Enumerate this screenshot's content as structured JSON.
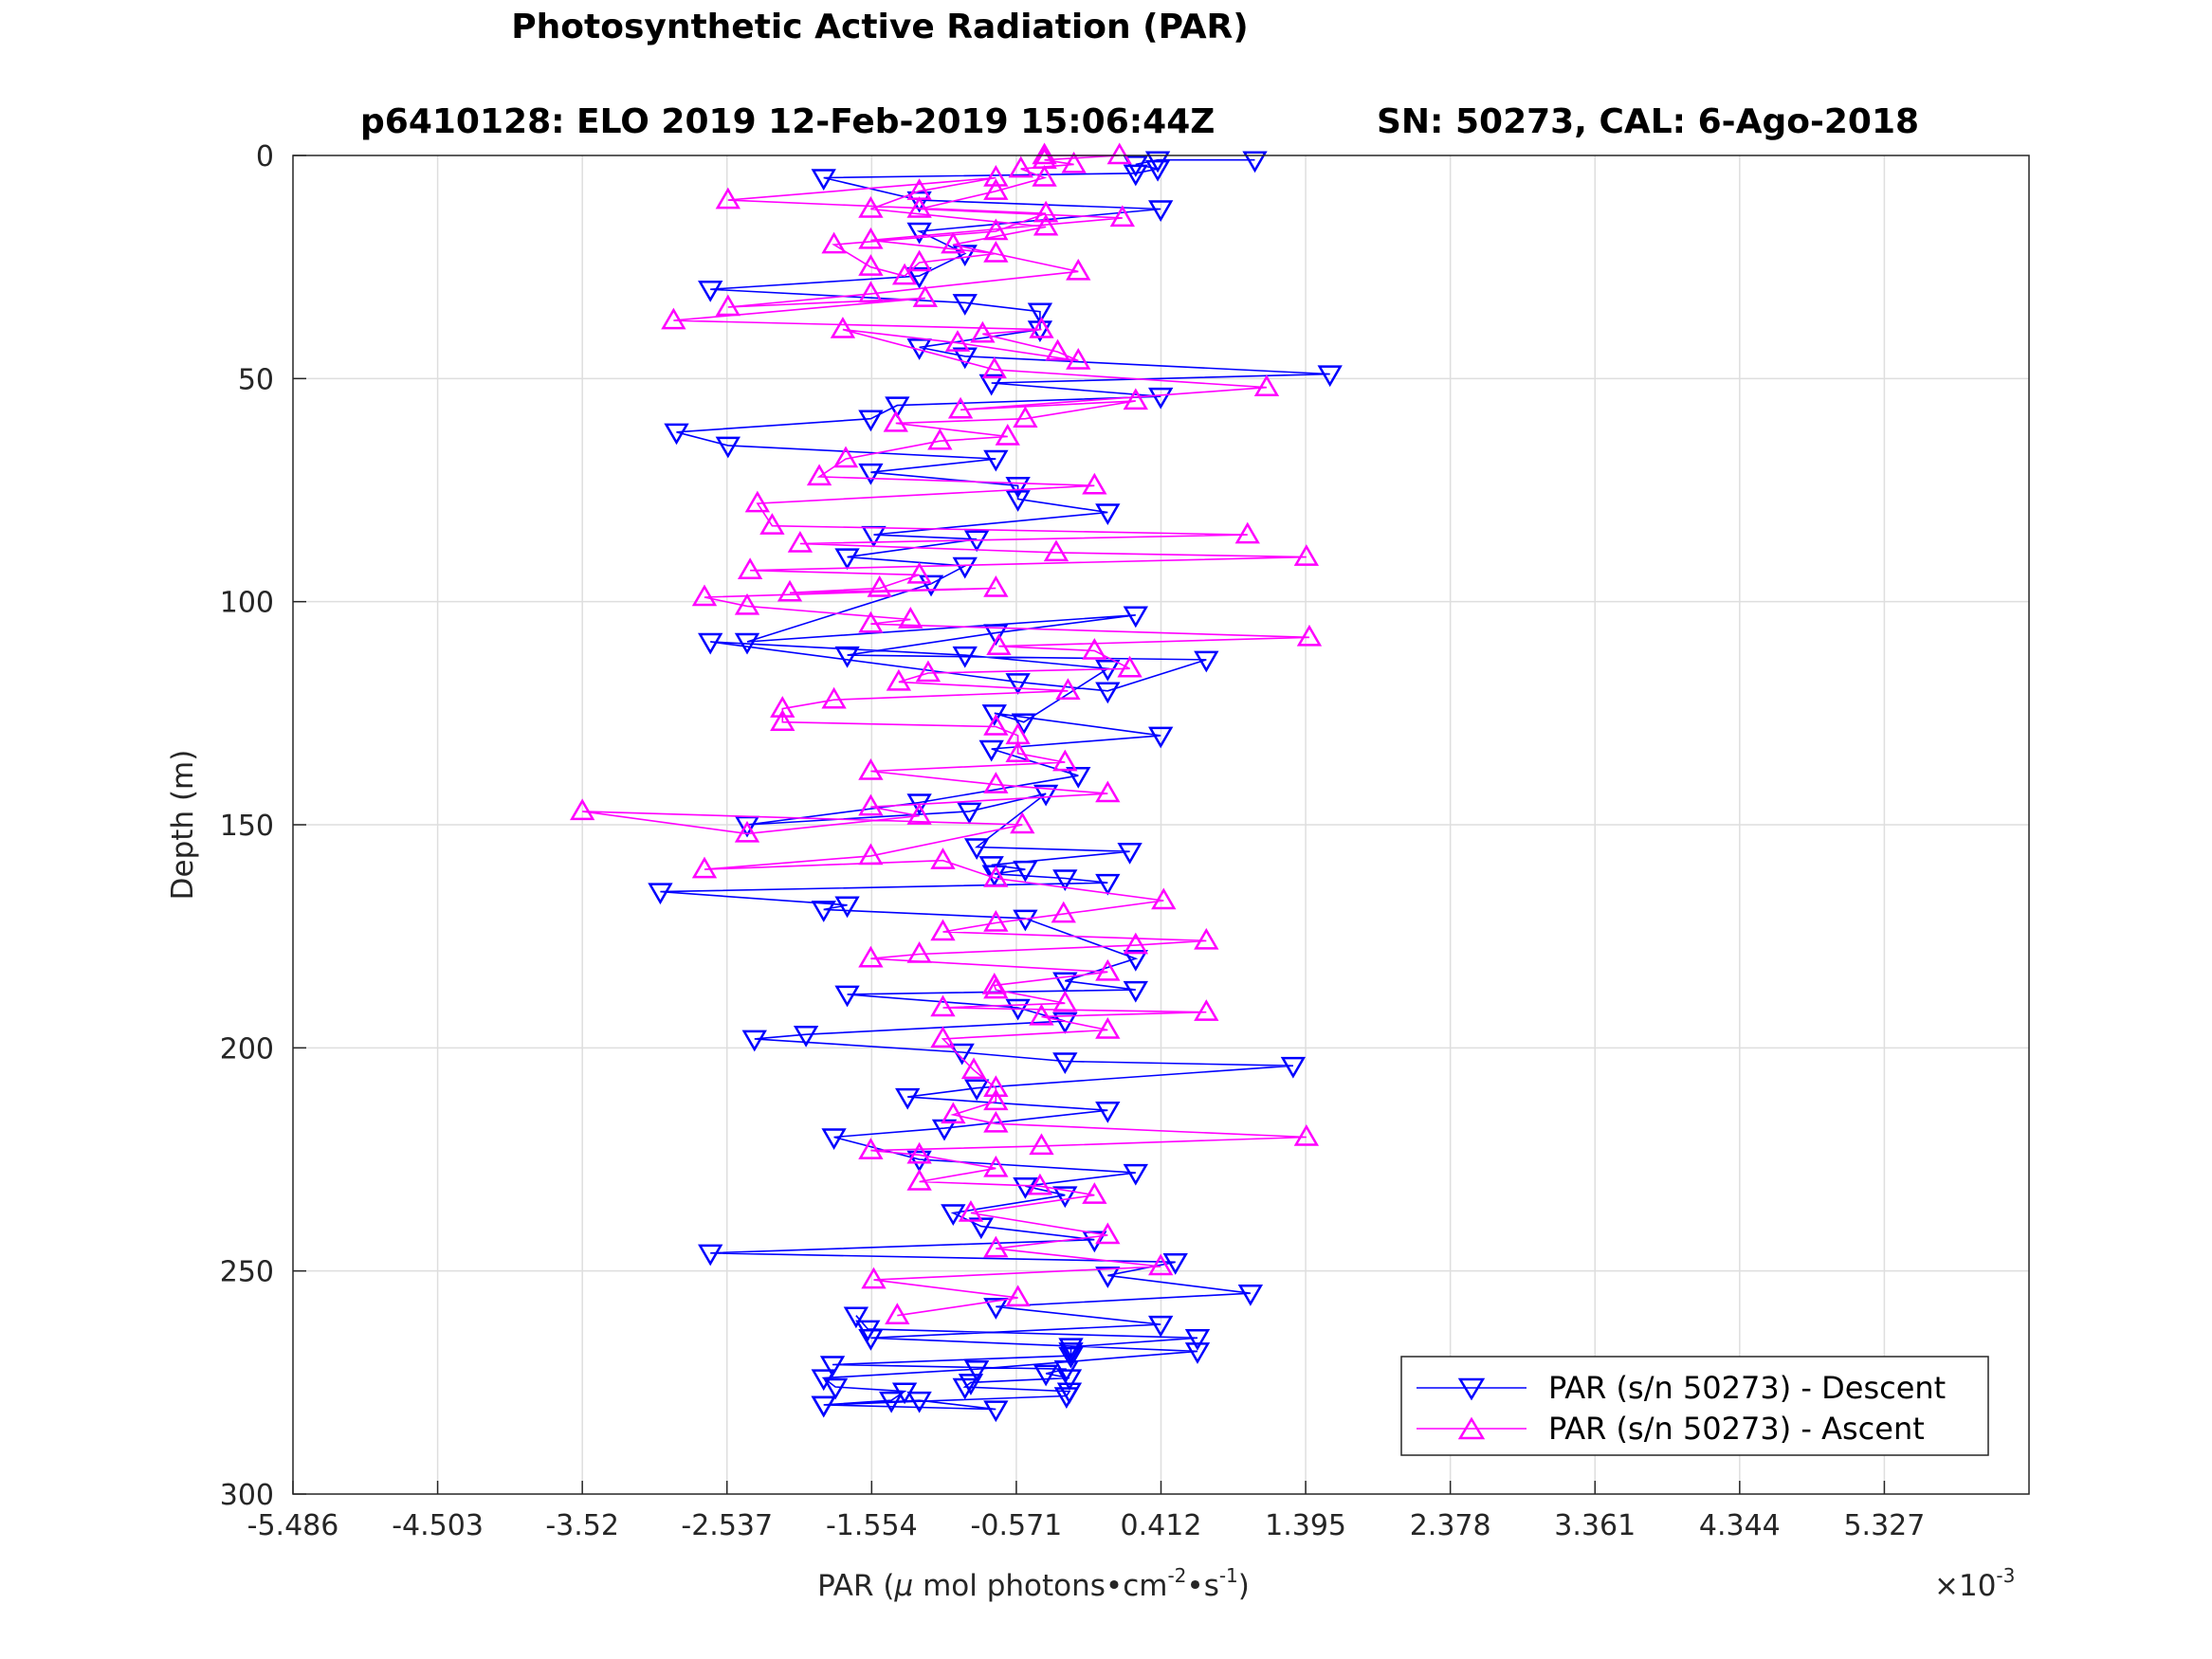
{
  "figure": {
    "title": "Photosynthetic Active Radiation (PAR)",
    "subtitle_left": "p6410128: ELO 2019 12-Feb-2019 15:06:44Z",
    "subtitle_right": "SN: 50273, CAL: 6-Ago-2018"
  },
  "chart_data": {
    "type": "line",
    "xlabel": "PAR (μ mol photons•cm-2•s-1)",
    "xlabel_parts": {
      "pre": "PAR (",
      "mu": "μ",
      "mid": " mol photons•cm",
      "sup1": "-2",
      "mid2": "•s",
      "sup2": "-1",
      "post": ")"
    },
    "ylabel": "Depth (m)",
    "x_multiplier": "×10-3",
    "x_multiplier_parts": {
      "base": "×10",
      "exp": "-3"
    },
    "xlim": [
      -5.486,
      6.31
    ],
    "ylim": [
      0,
      300
    ],
    "y_reversed": true,
    "xticks": [
      -5.486,
      -4.503,
      -3.52,
      -2.537,
      -1.554,
      -0.571,
      0.412,
      1.395,
      2.378,
      3.361,
      4.344,
      5.327
    ],
    "xtick_labels": [
      "-5.486",
      "-4.503",
      "-3.52",
      "-2.537",
      "-1.554",
      "-0.571",
      "0.412",
      "1.395",
      "2.378",
      "3.361",
      "4.344",
      "5.327"
    ],
    "yticks": [
      0,
      50,
      100,
      150,
      200,
      250,
      300
    ],
    "ytick_labels": [
      "0",
      "50",
      "100",
      "150",
      "200",
      "250",
      "300"
    ],
    "grid": true,
    "legend_position": "bottom-right",
    "series": [
      {
        "name": "PAR (s/n 50273) - Descent",
        "color": "#0000ff",
        "marker": "triangle-down",
        "x": [
          1.05,
          0.39,
          0.24,
          0.39,
          0.24,
          -1.88,
          -1.23,
          0.41,
          -1.23,
          -0.92,
          -1.23,
          -2.65,
          -0.92,
          -0.41,
          -0.41,
          -1.23,
          -0.92,
          1.56,
          -0.74,
          0.41,
          -1.38,
          -1.56,
          -2.88,
          -2.53,
          -0.71,
          -1.56,
          -0.56,
          -0.56,
          0.05,
          -1.54,
          -0.84,
          -1.72,
          -0.92,
          -1.15,
          -2.4,
          0.24,
          -0.71,
          -1.72,
          0.72,
          0.05,
          -0.56,
          -2.65,
          -0.92,
          0.05,
          -0.52,
          -0.72,
          0.41,
          -0.74,
          -0.15,
          -1.23,
          -2.4,
          -0.89,
          -0.37,
          -0.84,
          0.2,
          -0.74,
          -0.51,
          -0.72,
          -0.24,
          0.05,
          -2.99,
          -1.72,
          -1.88,
          -0.51,
          0.24,
          -0.24,
          0.24,
          -1.72,
          -0.56,
          -0.24,
          -2.0,
          -2.35,
          -0.94,
          -0.24,
          1.31,
          -0.84,
          -1.31,
          0.05,
          -1.06,
          -1.81,
          -1.23,
          0.24,
          -0.51,
          -0.24,
          -1.0,
          -0.81,
          -0.04,
          -2.65,
          0.51,
          0.05,
          1.02,
          -0.71,
          0.41,
          -1.56,
          0.66,
          -0.84,
          -1.88,
          -1.8,
          -1.33,
          -1.42,
          -1.88,
          -0.71,
          -1.23,
          -1.88,
          -0.23,
          -0.21,
          -0.92,
          -0.88,
          -0.21,
          -0.37,
          -0.23,
          -1.82,
          -0.2,
          -0.2,
          -0.2,
          0.66,
          -1.58,
          -1.66
        ],
        "y": [
          1,
          1,
          2,
          3,
          4,
          5,
          10,
          12,
          17,
          22,
          27,
          30,
          33,
          35,
          39,
          43,
          45,
          49,
          51,
          54,
          56,
          59,
          62,
          65,
          68,
          71,
          74,
          77,
          80,
          85,
          86,
          90,
          92,
          96,
          109,
          103,
          107,
          112,
          113,
          120,
          118,
          109,
          112,
          115,
          127,
          125,
          130,
          133,
          139,
          145,
          150,
          147,
          143,
          155,
          156,
          159,
          160,
          161,
          162,
          163,
          165,
          168,
          169,
          171,
          180,
          185,
          187,
          188,
          191,
          194,
          197,
          198,
          201,
          203,
          204,
          209,
          211,
          214,
          218,
          220,
          225,
          228,
          231,
          233,
          237,
          240,
          243,
          246,
          248,
          251,
          255,
          258,
          262,
          265,
          268,
          272,
          274,
          276,
          277,
          279,
          280,
          281,
          279,
          280,
          278,
          277,
          276,
          275,
          274,
          273,
          272,
          271,
          269,
          268,
          267,
          265,
          263,
          260
        ]
      },
      {
        "name": "PAR (s/n 50273) - Ascent",
        "color": "#ff00ff",
        "marker": "triangle-up",
        "x": [
          -0.38,
          0.13,
          -0.38,
          -0.18,
          -0.54,
          -0.38,
          -0.71,
          -1.23,
          0.15,
          -1.56,
          -0.71,
          -1.23,
          -1.33,
          -1.56,
          -1.81,
          -0.71,
          -0.37,
          -2.53,
          -0.71,
          -1.23,
          -1.56,
          -0.37,
          -1.0,
          -0.15,
          -1.56,
          -2.53,
          -1.19,
          -2.9,
          -0.4,
          -0.8,
          -0.29,
          -0.15,
          -0.97,
          -1.75,
          -0.72,
          1.13,
          -0.95,
          0.24,
          -0.51,
          -1.39,
          -0.63,
          -1.09,
          -1.73,
          -1.91,
          -0.04,
          -2.33,
          -2.23,
          1.0,
          -2.04,
          -0.3,
          1.4,
          -2.38,
          -1.23,
          -1.5,
          -2.11,
          -0.71,
          -2.69,
          -2.4,
          -1.29,
          -1.56,
          1.42,
          -0.69,
          -0.04,
          0.2,
          -1.17,
          -1.37,
          -0.22,
          -1.81,
          -2.16,
          -2.16,
          -0.71,
          -0.56,
          -0.56,
          -0.24,
          -1.56,
          -0.71,
          0.05,
          -1.56,
          -1.23,
          -2.4,
          -3.52,
          -0.53,
          -1.56,
          -2.69,
          -1.07,
          -0.71,
          0.43,
          -0.25,
          -0.71,
          -1.07,
          0.72,
          0.24,
          -1.23,
          -1.56,
          0.05,
          -0.72,
          -0.71,
          -0.24,
          -1.07,
          0.72,
          -0.4,
          0.05,
          -1.07,
          -0.86,
          -0.71,
          -0.71,
          -1.0,
          -0.71,
          1.4,
          -0.4,
          -1.56,
          -1.23,
          -0.71,
          -1.23,
          -0.41,
          -0.04,
          -0.88,
          0.05,
          -0.71,
          0.41,
          -1.54,
          -0.56,
          -1.38
        ],
        "y": [
          0,
          0,
          1,
          2,
          3,
          5,
          8,
          12,
          14,
          19,
          22,
          24,
          27,
          25,
          20,
          17,
          13,
          10,
          5,
          8,
          12,
          16,
          20,
          26,
          31,
          34,
          32,
          37,
          39,
          40,
          44,
          46,
          42,
          39,
          48,
          52,
          57,
          55,
          59,
          60,
          63,
          64,
          68,
          72,
          74,
          78,
          83,
          85,
          87,
          89,
          90,
          93,
          94,
          97,
          98,
          97,
          99,
          101,
          104,
          105,
          108,
          110,
          111,
          115,
          116,
          118,
          120,
          122,
          124,
          127,
          128,
          130,
          134,
          136,
          138,
          141,
          143,
          146,
          148,
          152,
          147,
          150,
          157,
          160,
          158,
          162,
          167,
          170,
          172,
          174,
          176,
          177,
          179,
          180,
          183,
          186,
          187,
          190,
          191,
          192,
          193,
          196,
          198,
          205,
          209,
          212,
          215,
          217,
          220,
          222,
          223,
          224,
          227,
          230,
          231,
          233,
          237,
          242,
          245,
          249,
          252,
          256,
          260
        ]
      }
    ]
  }
}
